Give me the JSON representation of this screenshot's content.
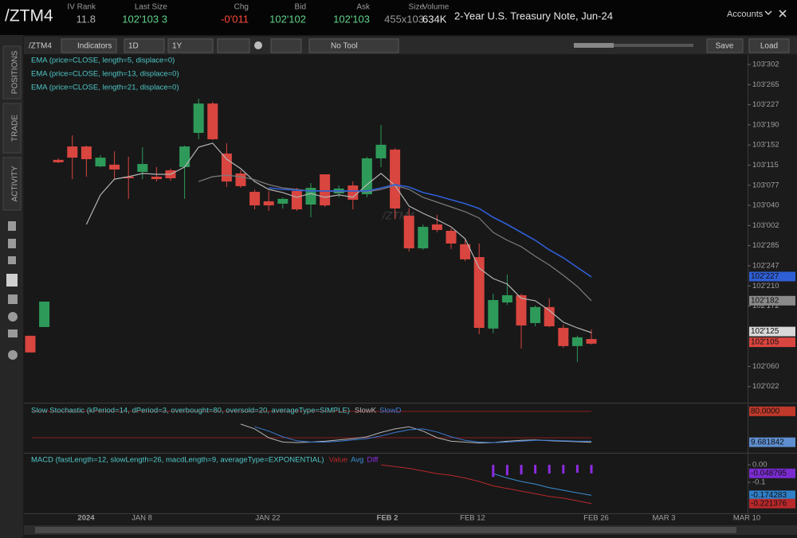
{
  "header": {
    "symbol": "/ZTM4",
    "fields": [
      {
        "label": "IV Rank",
        "value": "11.8",
        "color": "#b0b0b0"
      },
      {
        "label": "Last Size",
        "value": "102'103 3",
        "color": "#5fd38a"
      },
      {
        "label": "Chg",
        "value": "-0'011",
        "color": "#ff4a3d"
      },
      {
        "label": "Bid",
        "value": "102'102",
        "color": "#5fd38a"
      },
      {
        "label": "Ask",
        "value": "102'103",
        "color": "#5fd38a"
      },
      {
        "label": "Size",
        "value": "455x103",
        "color": "#9a9a9a"
      },
      {
        "label": "Volume",
        "value": "634K",
        "color": "#e8e8e8"
      }
    ],
    "description": "2-Year U.S. Treasury Note, Jun-24",
    "accounts": "Accounts"
  },
  "sidebar": {
    "tabs": [
      "POSITIONS",
      "TRADE",
      "ACTIVITY"
    ]
  },
  "toolbar": {
    "symbol": "/ZTM4",
    "indicators": "Indicators",
    "aggregation": "1D",
    "range": "1Y",
    "tool": "No Tool",
    "save": "Save",
    "load": "Load"
  },
  "time_axis": {
    "labels": [
      "2024",
      "JAN 8",
      "JAN 22",
      "FEB 2",
      "FEB 12",
      "FEB 26",
      "MAR 3",
      "MAR 10"
    ]
  },
  "chart_data": [
    {
      "type": "candlestick",
      "watermark": "/ZTM4",
      "up_color": "#2e9a5a",
      "down_color": "#d9453f",
      "open": [
        102.366,
        102.417,
        103.39,
        103.468,
        103.468,
        103.352,
        103.362,
        103.292,
        103.32,
        103.292,
        103.329,
        103.348,
        103.547,
        103.718,
        103.427,
        103.311,
        103.204,
        103.149,
        103.135,
        103.209,
        103.13,
        103.306,
        103.195,
        103.241,
        103.19,
        103.399,
        103.45,
        103.065,
        102.875,
        103.014,
        102.977,
        102.899,
        102.824,
        102.408,
        102.56,
        102.602,
        102.44,
        102.533,
        102.412,
        102.306,
        102.347
      ],
      "high": [
        102.366,
        102.565,
        103.399,
        103.533,
        103.473,
        103.417,
        103.44,
        103.408,
        103.464,
        103.348,
        103.339,
        103.473,
        103.746,
        103.728,
        103.487,
        103.329,
        103.218,
        103.209,
        103.172,
        103.227,
        103.255,
        103.306,
        103.241,
        103.264,
        103.408,
        103.593,
        103.459,
        103.107,
        103.014,
        103.07,
        102.991,
        102.931,
        102.903,
        102.611,
        102.723,
        102.611,
        102.542,
        102.584,
        102.431,
        102.366,
        102.403
      ],
      "low": [
        102.269,
        102.417,
        103.371,
        103.278,
        103.292,
        103.348,
        103.278,
        103.163,
        103.278,
        103.264,
        103.269,
        103.163,
        103.51,
        103.505,
        103.232,
        103.227,
        103.102,
        103.093,
        103.107,
        103.093,
        103.056,
        103.116,
        103.172,
        103.102,
        103.172,
        103.348,
        103.047,
        102.857,
        102.866,
        102.968,
        102.871,
        102.801,
        102.375,
        102.38,
        102.546,
        102.292,
        102.421,
        102.417,
        102.296,
        102.213,
        102.315
      ],
      "close": [
        102.269,
        102.565,
        103.376,
        103.403,
        103.394,
        103.403,
        103.334,
        103.283,
        103.366,
        103.278,
        103.283,
        103.468,
        103.718,
        103.51,
        103.264,
        103.237,
        103.125,
        103.125,
        103.163,
        103.102,
        103.227,
        103.125,
        103.223,
        103.158,
        103.399,
        103.478,
        103.107,
        102.875,
        103.0,
        102.982,
        102.903,
        102.811,
        102.412,
        102.574,
        102.602,
        102.426,
        102.533,
        102.421,
        102.306,
        102.357,
        102.32
      ],
      "series": [
        {
          "name": "EMA (price=CLOSE, length=5, displace=0)",
          "color": "#b4b4b4",
          "values": [
            null,
            null,
            null,
            null,
            103.014,
            103.186,
            103.278,
            103.292,
            103.311,
            103.306,
            103.306,
            103.348,
            103.464,
            103.487,
            103.394,
            103.339,
            103.264,
            103.218,
            103.2,
            103.172,
            103.195,
            103.172,
            103.186,
            103.172,
            103.246,
            103.311,
            103.241,
            103.121,
            103.079,
            103.042,
            103.0,
            102.931,
            102.76,
            102.699,
            102.667,
            102.584,
            102.57,
            102.514,
            102.445,
            102.412,
            102.384
          ]
        },
        {
          "name": "EMA (price=CLOSE, length=13, displace=0)",
          "color": "#7c7c7c",
          "values": [
            null,
            null,
            null,
            null,
            null,
            null,
            null,
            null,
            null,
            null,
            null,
            null,
            103.264,
            103.292,
            103.301,
            103.292,
            103.274,
            103.246,
            103.227,
            103.218,
            103.209,
            103.209,
            103.204,
            103.209,
            103.204,
            103.218,
            103.241,
            103.218,
            103.172,
            103.144,
            103.116,
            103.088,
            103.051,
            102.968,
            102.922,
            102.885,
            102.829,
            102.778,
            102.718,
            102.653,
            102.57
          ]
        },
        {
          "name": "EMA (price=CLOSE, length=21, displace=0)",
          "color": "#2f5fd6",
          "values": [
            null,
            null,
            null,
            null,
            null,
            null,
            null,
            null,
            null,
            null,
            null,
            null,
            null,
            null,
            null,
            null,
            null,
            103.227,
            103.218,
            103.213,
            103.209,
            103.209,
            103.209,
            103.209,
            103.209,
            103.227,
            103.246,
            103.232,
            103.2,
            103.181,
            103.158,
            103.135,
            103.107,
            103.056,
            103.014,
            102.968,
            102.922,
            102.866,
            102.82,
            102.764,
            102.709
          ]
        }
      ],
      "ylim": [
        101.981,
        104.001
      ],
      "yticks": [
        {
          "value": 103.9453,
          "label": "103'302"
        },
        {
          "value": 103.8281,
          "label": "103'265"
        },
        {
          "value": 103.7109,
          "label": "103'227"
        },
        {
          "value": 103.5938,
          "label": "103'190"
        },
        {
          "value": 103.4766,
          "label": "103'152"
        },
        {
          "value": 103.3594,
          "label": "103'115"
        },
        {
          "value": 103.2422,
          "label": "103'077"
        },
        {
          "value": 103.125,
          "label": "103'040"
        },
        {
          "value": 103.0078,
          "label": "103'002"
        },
        {
          "value": 102.8906,
          "label": "102'285"
        },
        {
          "value": 102.7734,
          "label": "102'247"
        },
        {
          "value": 102.6563,
          "label": "102'210"
        },
        {
          "value": 102.5391,
          "label": "102'172"
        },
        {
          "value": 102.1875,
          "label": "102'060"
        },
        {
          "value": 102.0703,
          "label": "102'022"
        }
      ],
      "markers": [
        {
          "value": 102.7109,
          "label": "102'227",
          "color": "#2f5fd6"
        },
        {
          "value": 102.5703,
          "label": "102'182",
          "color": "#8a8a8a"
        },
        {
          "value": 102.3906,
          "label": "102'125",
          "color": "#d8d8d8"
        },
        {
          "value": 102.3281,
          "label": "102'105",
          "color": "#d9453f"
        }
      ]
    },
    {
      "type": "line",
      "title": "Slow Stochastic (kPeriod=14, dPeriod=3, overbought=80, oversold=20, averageType=SIMPLE)",
      "ylim": [
        -9,
        96
      ],
      "levels": [
        80,
        20
      ],
      "level_color": "#8b1c1c",
      "series": [
        {
          "name": "SlowK",
          "color": "#b4b4b4",
          "values": [
            null,
            null,
            null,
            null,
            null,
            null,
            null,
            null,
            null,
            null,
            null,
            null,
            null,
            null,
            null,
            51,
            40,
            20,
            10,
            9,
            10,
            12,
            15,
            18,
            22,
            32,
            40,
            45,
            35,
            20,
            12,
            10,
            8,
            9,
            12,
            14,
            15,
            13,
            12,
            11,
            9.681842
          ]
        },
        {
          "name": "SlowD",
          "color": "#3a7bd5",
          "values": [
            null,
            null,
            null,
            null,
            null,
            null,
            null,
            null,
            null,
            null,
            null,
            null,
            null,
            null,
            null,
            null,
            45,
            35,
            22,
            13,
            10,
            10,
            12,
            15,
            18,
            24,
            32,
            38,
            40,
            33,
            22,
            14,
            10,
            9,
            10,
            12,
            14,
            14,
            13,
            12,
            12
          ]
        }
      ],
      "markers": [
        {
          "value": 80,
          "label": "80.0000",
          "color": "#c0392b"
        },
        {
          "value": 9.681842,
          "label": "9.681842",
          "color": "#5f8fd0"
        }
      ]
    },
    {
      "type": "macd",
      "title": "MACD (fastLength=12, slowLength=26, macdLength=9, averageType=EXPONENTIAL)",
      "ylim": [
        -0.268,
        0.055
      ],
      "yticks": [
        {
          "value": 0,
          "label": "0.00"
        },
        {
          "value": -0.1,
          "label": "-0.1"
        }
      ],
      "series": [
        {
          "name": "Value",
          "color": "#b8282a",
          "kind": "line",
          "values": [
            null,
            null,
            null,
            null,
            null,
            null,
            null,
            null,
            null,
            null,
            null,
            null,
            null,
            null,
            null,
            null,
            null,
            null,
            null,
            null,
            null,
            null,
            null,
            null,
            null,
            0,
            -0.01,
            -0.02,
            -0.035,
            -0.05,
            -0.06,
            -0.075,
            -0.095,
            -0.12,
            -0.135,
            -0.15,
            -0.165,
            -0.18,
            -0.19,
            -0.205,
            -0.221376
          ]
        },
        {
          "name": "Avg",
          "color": "#3a8fd5",
          "kind": "line",
          "values": [
            null,
            null,
            null,
            null,
            null,
            null,
            null,
            null,
            null,
            null,
            null,
            null,
            null,
            null,
            null,
            null,
            null,
            null,
            null,
            null,
            null,
            null,
            null,
            null,
            null,
            null,
            null,
            null,
            null,
            null,
            null,
            null,
            null,
            -0.05,
            -0.075,
            -0.095,
            -0.11,
            -0.13,
            -0.145,
            -0.16,
            -0.174283
          ]
        },
        {
          "name": "Diff",
          "color": "#8e2be2",
          "kind": "bar",
          "values": [
            null,
            null,
            null,
            null,
            null,
            null,
            null,
            null,
            null,
            null,
            null,
            null,
            null,
            null,
            null,
            null,
            null,
            null,
            null,
            null,
            null,
            null,
            null,
            null,
            null,
            null,
            null,
            null,
            null,
            null,
            null,
            null,
            null,
            -0.07,
            -0.06,
            -0.055,
            -0.05,
            -0.05,
            -0.05,
            -0.045,
            -0.048795
          ]
        }
      ],
      "markers": [
        {
          "value": -0.048795,
          "label": "-0.048795",
          "color": "#7a2bd0"
        },
        {
          "value": -0.174283,
          "label": "-0.174283",
          "color": "#2f7fc8"
        },
        {
          "value": -0.221376,
          "label": "-0.221376",
          "color": "#b8282a"
        }
      ]
    }
  ]
}
